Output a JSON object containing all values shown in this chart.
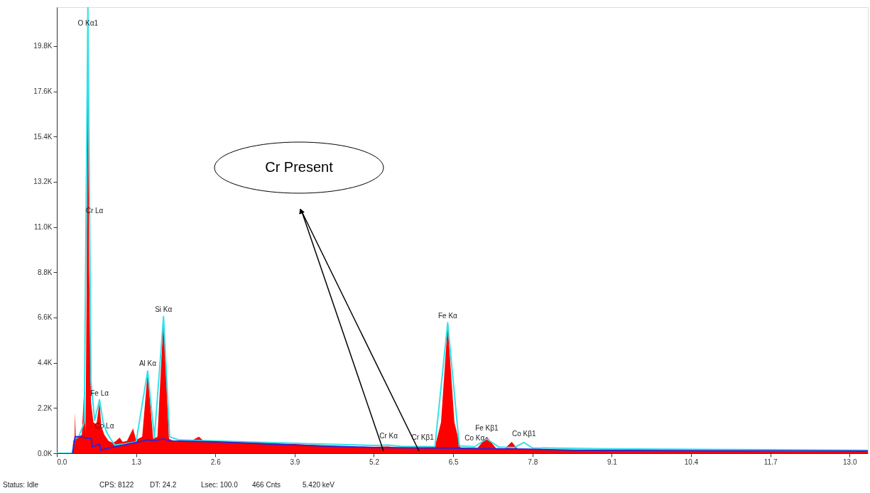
{
  "chart_data": {
    "type": "area",
    "xlim": [
      0,
      13.3
    ],
    "ylim": [
      0,
      21700
    ],
    "xticks": [
      {
        "value": 0,
        "label": "0.0"
      },
      1.3,
      2.6,
      3.9,
      5.2,
      6.5,
      7.8,
      9.1,
      10.4,
      11.7,
      {
        "value": 13,
        "label": "13.0"
      }
    ],
    "yticks": [
      {
        "value": 0,
        "label": "0.0K"
      },
      {
        "value": 2200,
        "label": "2.2K"
      },
      {
        "value": 4400,
        "label": "4.4K"
      },
      {
        "value": 6600,
        "label": "6.6K"
      },
      {
        "value": 8800,
        "label": "8.8K"
      },
      {
        "value": 11000,
        "label": "11.0K"
      },
      {
        "value": 13200,
        "label": "13.2K"
      },
      {
        "value": 15400,
        "label": "15.4K"
      },
      {
        "value": 17600,
        "label": "17.6K"
      },
      {
        "value": 19800,
        "label": "19.8K"
      }
    ],
    "grid": false,
    "series": [
      {
        "type": "area",
        "color": "#ff0000",
        "x": [
          0,
          0.25,
          0.27,
          0.29,
          0.3,
          0.31,
          0.36,
          0.41,
          0.45,
          0.47,
          0.49,
          0.51,
          0.53,
          0.56,
          0.6,
          0.65,
          0.7,
          0.73,
          0.78,
          0.85,
          0.92,
          0.97,
          1.03,
          1.08,
          1.15,
          1.25,
          1.3,
          1.4,
          1.49,
          1.58,
          1.65,
          1.75,
          1.84,
          1.95,
          2.2,
          2.33,
          2.4,
          2.8,
          3.3,
          3.9,
          4.5,
          5.0,
          5.44,
          5.6,
          6.0,
          6.2,
          6.3,
          6.41,
          6.52,
          6.62,
          6.9,
          7.05,
          7.2,
          7.35,
          7.46,
          7.56,
          8.0,
          9.0,
          10.0,
          11.0,
          12.0,
          13.3
        ],
        "values": [
          0,
          0,
          600,
          700,
          2000,
          700,
          800,
          900,
          3200,
          1000,
          8000,
          20500,
          9000,
          2500,
          1500,
          1400,
          2500,
          1300,
          900,
          600,
          500,
          600,
          760,
          550,
          600,
          1200,
          650,
          800,
          3950,
          700,
          800,
          6570,
          700,
          550,
          600,
          800,
          620,
          580,
          520,
          450,
          350,
          300,
          330,
          270,
          280,
          300,
          1500,
          6260,
          1500,
          280,
          260,
          800,
          250,
          240,
          550,
          200,
          180,
          150,
          130,
          110,
          90,
          80
        ]
      },
      {
        "type": "line",
        "color": "#33e0e8",
        "x": [
          0,
          0.25,
          0.3,
          0.36,
          0.45,
          0.51,
          0.56,
          0.62,
          0.7,
          0.76,
          0.82,
          0.88,
          0.95,
          1.1,
          1.3,
          1.49,
          1.6,
          1.75,
          1.85,
          2.0,
          2.6,
          3.9,
          5.2,
          5.44,
          5.65,
          6.0,
          6.2,
          6.41,
          6.6,
          6.85,
          7.05,
          7.25,
          7.5,
          7.66,
          7.8,
          9.0,
          11.0,
          13.3
        ],
        "values": [
          0,
          0,
          700,
          800,
          1500,
          21700,
          3500,
          1600,
          2600,
          1500,
          1000,
          700,
          400,
          450,
          550,
          4000,
          750,
          6650,
          800,
          650,
          600,
          480,
          380,
          400,
          330,
          330,
          320,
          6350,
          350,
          320,
          700,
          300,
          280,
          520,
          260,
          220,
          180,
          150
        ]
      },
      {
        "type": "line",
        "color": "#3a22c8",
        "x": [
          0.26,
          0.3,
          0.36,
          0.57,
          0.58,
          0.7,
          0.72,
          0.85,
          1.5,
          1.6,
          1.75,
          1.85,
          2.6,
          3.9,
          5.2,
          6.4,
          7.0,
          7.7,
          8.5,
          13.3
        ],
        "values": [
          0,
          800,
          800,
          700,
          300,
          450,
          150,
          250,
          650,
          600,
          700,
          600,
          550,
          400,
          280,
          250,
          220,
          200,
          150,
          100
        ]
      }
    ],
    "annotations": [
      {
        "text": "O  Kα1",
        "x": 0.51,
        "y": 20500
      },
      {
        "text": "Si Kα",
        "x": 1.75,
        "y": 6570
      },
      {
        "text": "Al Kα",
        "x": 1.49,
        "y": 3950
      },
      {
        "text": "Fe Lα",
        "x": 0.7,
        "y": 2500
      },
      {
        "text": "Co Lα",
        "x": 0.78,
        "y": 900
      },
      {
        "text": "Fe Kα",
        "x": 6.41,
        "y": 6260
      },
      {
        "text": "Fe Kβ1",
        "x": 7.05,
        "y": 800
      },
      {
        "text": "Co Kα",
        "x": 6.85,
        "y": 320
      },
      {
        "text": "Co Kβ1",
        "x": 7.66,
        "y": 520
      },
      {
        "text": "Cr Kα",
        "x": 5.44,
        "y": 400
      },
      {
        "text": "Cr Kβ1",
        "x": 6.0,
        "y": 330
      },
      "Cr Lα",
      "Cr Present",
      "Status: Idle",
      "CPS: 8122",
      "DT: 24.2",
      "Lsec: 100.0",
      "466 Cnts",
      "5.420 keV"
    ]
  }
}
